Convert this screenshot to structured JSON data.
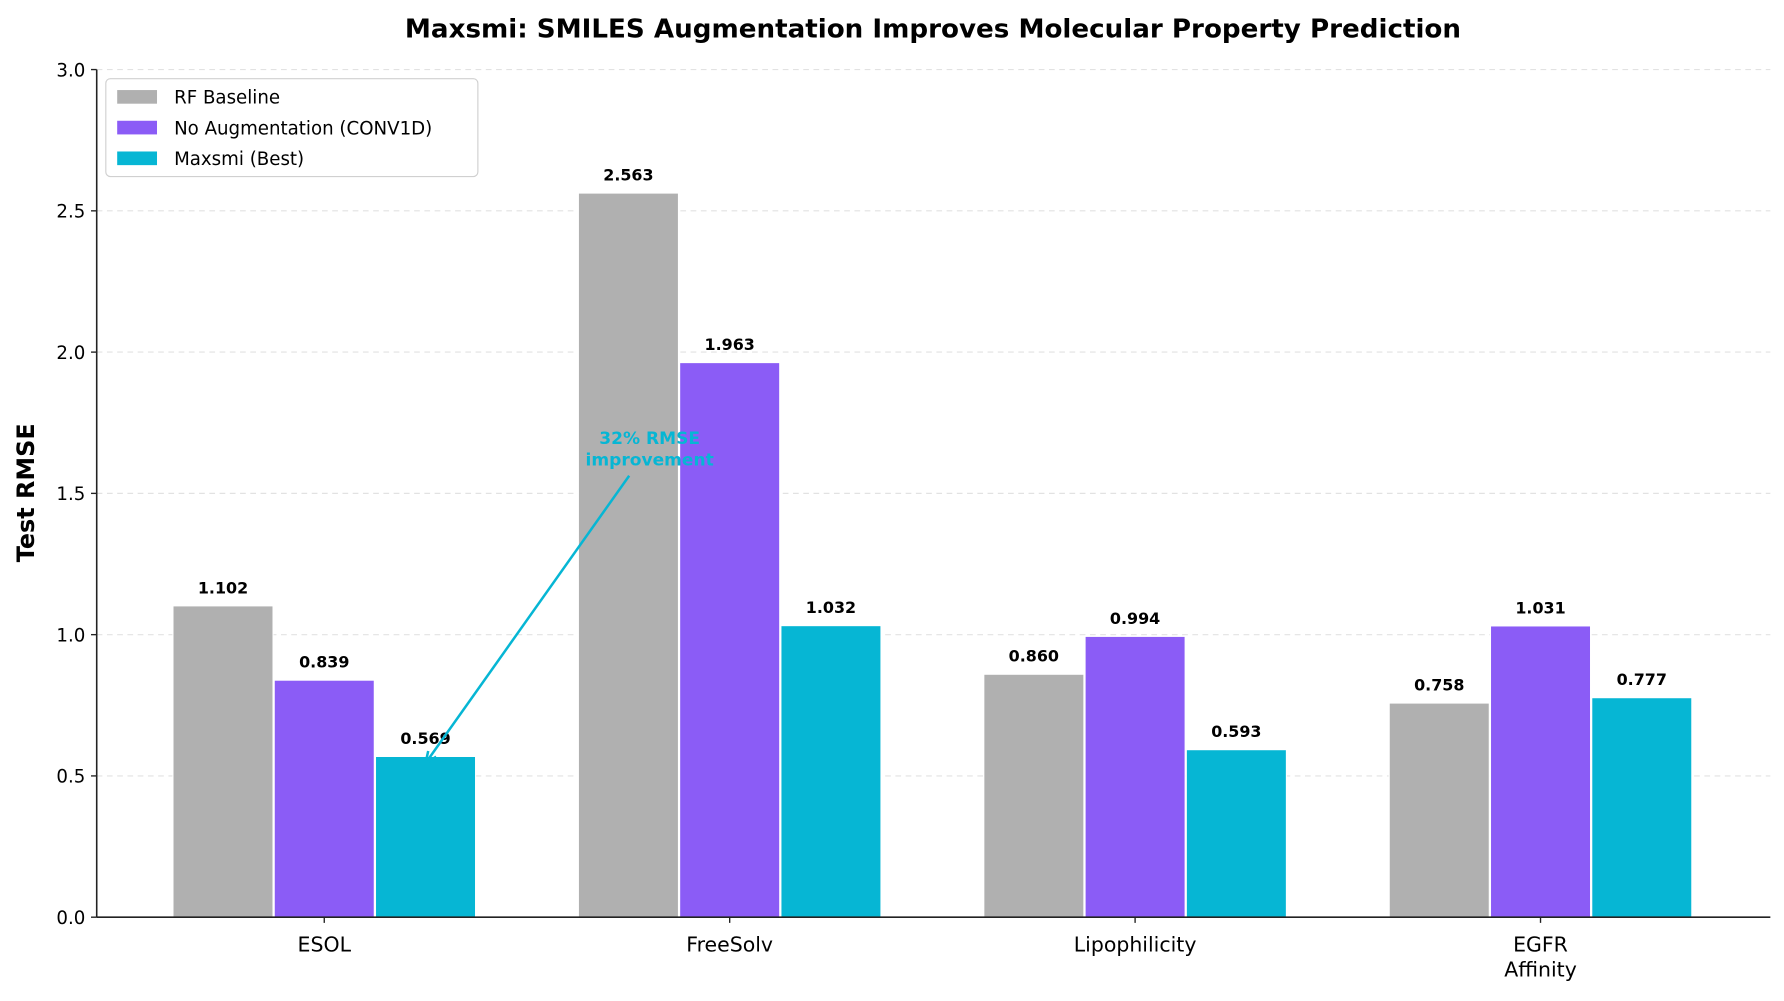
{
  "chart_data": {
    "type": "bar",
    "title": "Maxsmi: SMILES Augmentation Improves Molecular Property Prediction",
    "xlabel": "",
    "ylabel": "Test RMSE",
    "ylim": [
      0,
      3.0
    ],
    "yticks": [
      "0.0",
      "0.5",
      "1.0",
      "1.5",
      "2.0",
      "2.5",
      "3.0"
    ],
    "grid": "y-dashed",
    "legend_position": "top-left",
    "categories": [
      [
        "ESOL"
      ],
      [
        "FreeSolv"
      ],
      [
        "Lipophilicity"
      ],
      [
        "EGFR",
        "Affinity"
      ]
    ],
    "series": [
      {
        "name": "RF Baseline",
        "color": "#b0b0b0",
        "values": [
          1.102,
          2.563,
          0.86,
          0.758
        ],
        "labels": [
          "1.102",
          "2.563",
          "0.860",
          "0.758"
        ]
      },
      {
        "name": "No Augmentation (CONV1D)",
        "color": "#8b5cf6",
        "values": [
          0.839,
          1.963,
          0.994,
          1.031
        ],
        "labels": [
          "0.839",
          "1.963",
          "0.994",
          "1.031"
        ]
      },
      {
        "name": "Maxsmi (Best)",
        "color": "#06b6d4",
        "values": [
          0.569,
          1.032,
          0.593,
          0.777
        ],
        "labels": [
          "0.569",
          "1.032",
          "0.593",
          "0.777"
        ]
      }
    ],
    "annotation": {
      "lines": [
        "32% RMSE",
        "improvement"
      ],
      "color": "#06b6d4",
      "points_to": {
        "category": "ESOL",
        "series": "Maxsmi (Best)",
        "y": 0.569
      },
      "text_at": {
        "category_between": [
          "ESOL",
          "FreeSolv"
        ],
        "y": 1.6
      }
    }
  }
}
